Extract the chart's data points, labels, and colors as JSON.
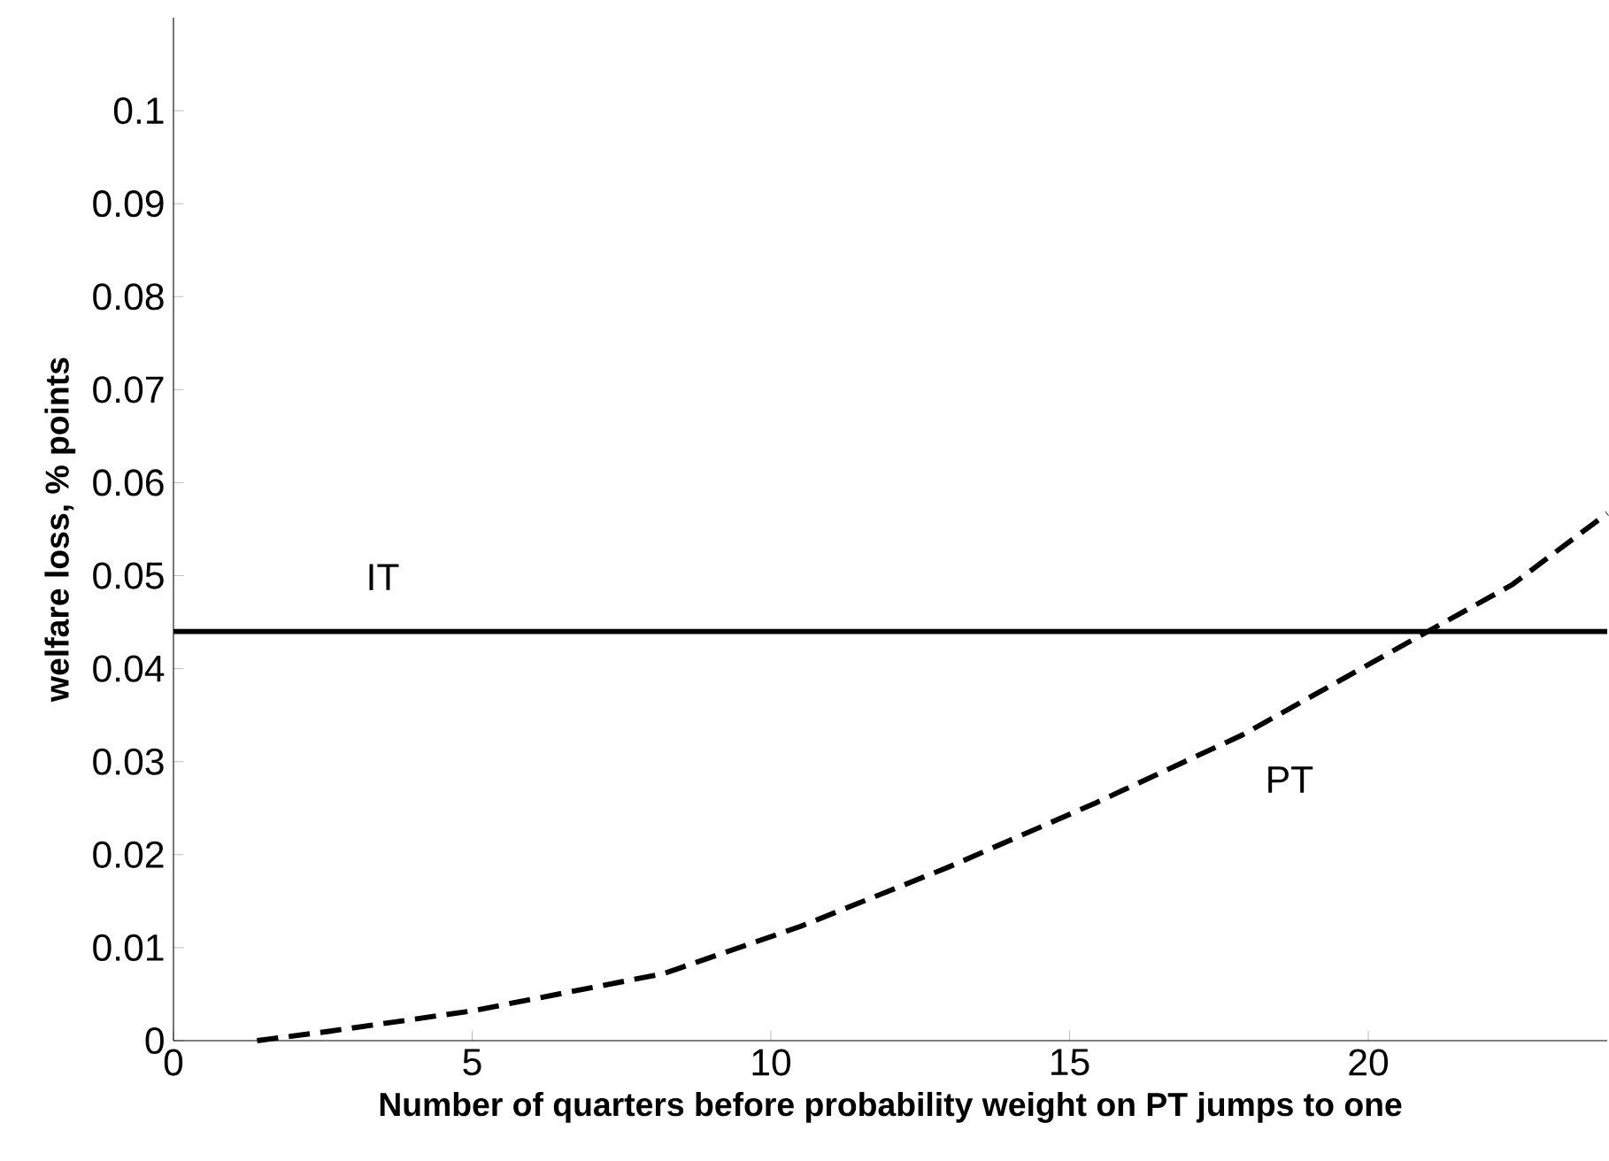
{
  "chart_data": {
    "type": "line",
    "xlabel": "Number of quarters before probability weight on PT jumps to one",
    "ylabel": "welfare loss, % points",
    "xlim": [
      0,
      24
    ],
    "ylim": [
      0,
      0.11
    ],
    "xticks": [
      0,
      5,
      10,
      15,
      20
    ],
    "yticks": [
      0,
      0.01,
      0.02,
      0.03,
      0.04,
      0.05,
      0.06,
      0.07,
      0.08,
      0.09,
      0.1
    ],
    "series": [
      {
        "name": "IT",
        "color": "#000000",
        "line_style": "solid",
        "x": [
          0,
          24
        ],
        "values": [
          0.044,
          0.044
        ]
      },
      {
        "name": "PT",
        "color": "#000000",
        "line_style": "dashed",
        "x": [
          1.4,
          2.6,
          5,
          8.2,
          10.5,
          12.95,
          15.45,
          17.9,
          20.8,
          22.4,
          24
        ],
        "values": [
          0,
          0.001,
          0.0032,
          0.0072,
          0.0123,
          0.0186,
          0.0256,
          0.0329,
          0.0433,
          0.049,
          0.0567
        ]
      }
    ],
    "grid": false,
    "marker": "none"
  }
}
